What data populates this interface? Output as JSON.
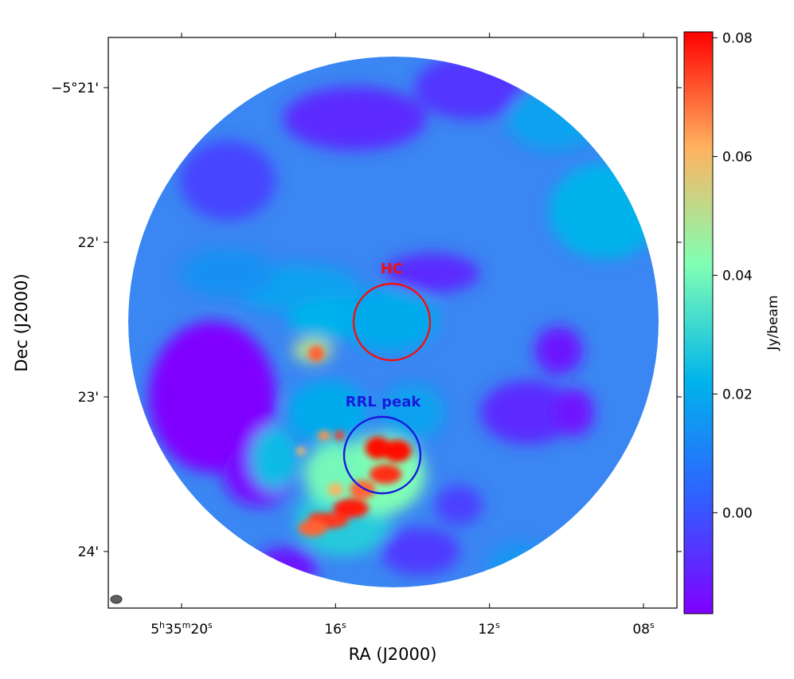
{
  "chart_data": {
    "type": "heatmap",
    "title": "",
    "xlabel": "RA (J2000)",
    "ylabel": "Dec (J2000)",
    "x_ticks": [
      {
        "h": "5",
        "m": "35",
        "s": "20",
        "label": "5h35m20s"
      },
      {
        "s": "16",
        "label": "16s"
      },
      {
        "s": "12",
        "label": "12s"
      },
      {
        "s": "08",
        "label": "08s"
      }
    ],
    "y_ticks": [
      {
        "label": "−5°21'"
      },
      {
        "label": "22'"
      },
      {
        "label": "23'"
      },
      {
        "label": "24'"
      }
    ],
    "x_tick_values_sec": [
      20,
      16,
      12,
      8
    ],
    "y_tick_values_arcmin": [
      -21,
      -22,
      -23,
      -24
    ],
    "colorbar": {
      "label": "Jy/beam",
      "colormap": "rainbow",
      "range": [
        -0.017,
        0.081
      ],
      "tick_values": [
        0.0,
        0.02,
        0.04,
        0.06,
        0.08
      ],
      "tick_labels": [
        "0.00",
        "0.02",
        "0.04",
        "0.06",
        "0.08"
      ],
      "colors": [
        "#8000ff",
        "#3060ff",
        "#00b4eb",
        "#80ffb4",
        "#ffb360",
        "#ff0000"
      ]
    },
    "annotations": [
      {
        "label": "HC",
        "color": "#ee1111",
        "ra_sec": 14.5,
        "dec_arcmin": -22.55
      },
      {
        "label": "RRL peak",
        "color": "#1a1adc",
        "ra_sec": 14.85,
        "dec_arcmin": -23.38
      }
    ],
    "features": [
      {
        "kind": "emission-peak",
        "ra_sec": 14.9,
        "dec_arcmin": -23.35,
        "value": 0.08
      },
      {
        "kind": "emission-peak",
        "ra_sec": 14.3,
        "dec_arcmin": -23.35,
        "value": 0.08
      },
      {
        "kind": "emission-peak",
        "ra_sec": 15.6,
        "dec_arcmin": -23.72,
        "value": 0.078
      },
      {
        "kind": "emission-peak",
        "ra_sec": 16.5,
        "dec_arcmin": -23.8,
        "value": 0.075
      },
      {
        "kind": "emission-peak",
        "ra_sec": 16.5,
        "dec_arcmin": -22.72,
        "value": 0.07
      },
      {
        "kind": "negative-region",
        "ra_sec": 18.6,
        "dec_arcmin": -23.0,
        "value": -0.017
      }
    ],
    "beam": "ellipse lower-left"
  }
}
